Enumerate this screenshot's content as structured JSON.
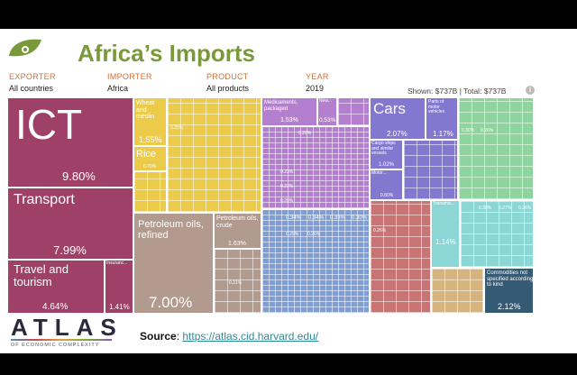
{
  "header": {
    "title": "Africa’s Imports",
    "logo_icon": "atlas-leaf-icon"
  },
  "filters": [
    {
      "label": "EXPORTER",
      "value": "All countries"
    },
    {
      "label": "IMPORTER",
      "value": "Africa"
    },
    {
      "label": "PRODUCT",
      "value": "All products"
    },
    {
      "label": "YEAR",
      "value": "2019"
    }
  ],
  "totals": {
    "shown_label": "Shown:",
    "shown": "$737B",
    "total_label": "Total:",
    "total": "$737B"
  },
  "treemap": {
    "ict": {
      "name": "ICT",
      "pct": "9.80%"
    },
    "transport": {
      "name": "Transport",
      "pct": "7.99%"
    },
    "travel": {
      "name": "Travel and tourism",
      "pct": "4.64%"
    },
    "insurance": {
      "name": "Insuranc...",
      "pct": "1.41%"
    },
    "wheat": {
      "name": "Wheat and meslin",
      "pct": "1.55%"
    },
    "rice": {
      "name": "Rice",
      "pct": "0.70%"
    },
    "yellow_small": "0.25%",
    "refined": {
      "name": "Petroleum oils, refined",
      "pct": "7.00%"
    },
    "crude": {
      "name": "Petroleum oils, crude",
      "pct": "1.63%"
    },
    "brown_small": "0.21%",
    "medicaments": {
      "name": "Medicaments, packaged",
      "pct": "1.53%"
    },
    "new": {
      "name": "New...",
      "pct": "0.53%"
    },
    "purple_small": [
      "0.20%",
      "0.23%",
      "0.22%",
      "0.20%"
    ],
    "blue_small": [
      "0.34%",
      "0.34%",
      "0.33%",
      "0.30%",
      "0.29%",
      "0.26%"
    ],
    "cars": {
      "name": "Cars",
      "pct": "2.07%"
    },
    "parts": {
      "name": "Parts of motor vehicles",
      "pct": "1.17%"
    },
    "cargo": {
      "name": "Cargo ships and similar vessels",
      "pct": "1.02%"
    },
    "motor": {
      "name": "Motor...",
      "pct": "0.80%"
    },
    "green_small": [
      "0.30%",
      "0.26%"
    ],
    "red_small": "0.26%",
    "cyan": {
      "name": "Transmis...",
      "pct": "1.14%"
    },
    "cyan_small": [
      "0.30%",
      "0.27%",
      "0.26%"
    ],
    "commodities": {
      "name": "Commodities not specified according to kind",
      "pct": "2.12%"
    },
    "colors": {
      "services": "#9e4068",
      "agri": "#eccb4a",
      "minerals": "#b39a8e",
      "chemicals": "#b57fd0",
      "machinery": "#7f9fd4",
      "vehicles": "#8378cf",
      "textiles": "#8fd49e",
      "metals": "#c97474",
      "electronics": "#8dd6d6",
      "stone": "#d6b47f",
      "other": "#355a73"
    }
  },
  "footer": {
    "atlas_logo": "ATLAS",
    "atlas_sub": "OF ECONOMIC COMPLEXITY",
    "source_label": "Source",
    "source_url": "https://atlas.cid.harvard.edu/"
  }
}
